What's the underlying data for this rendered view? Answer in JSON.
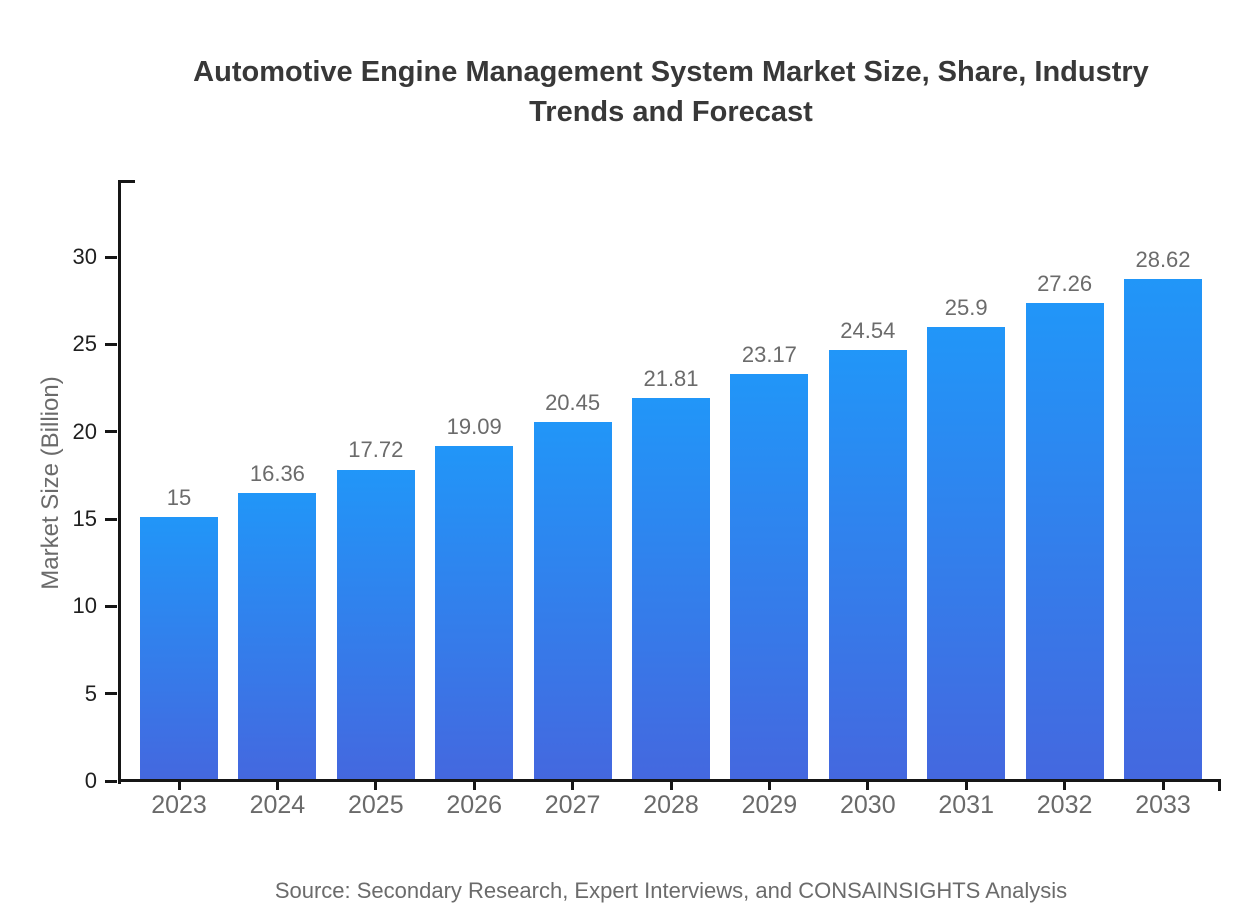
{
  "chart_data": {
    "type": "bar",
    "title": "Automotive Engine Management System Market Size, Share, Industry Trends and Forecast",
    "ylabel": "Market Size (Billion)",
    "xlabel": "",
    "categories": [
      "2023",
      "2024",
      "2025",
      "2026",
      "2027",
      "2028",
      "2029",
      "2030",
      "2031",
      "2032",
      "2033"
    ],
    "values": [
      15,
      16.36,
      17.72,
      19.09,
      20.45,
      21.81,
      23.17,
      24.54,
      25.9,
      27.26,
      28.62
    ],
    "data_labels": [
      "15",
      "16.36",
      "17.72",
      "19.09",
      "20.45",
      "21.81",
      "23.17",
      "24.54",
      "25.9",
      "27.26",
      "28.62"
    ],
    "yticks": [
      0,
      5,
      10,
      15,
      20,
      25,
      30
    ],
    "ylim": [
      0,
      34.4
    ],
    "grid": false,
    "legend": null,
    "bar_gradient_top": "#2196f8",
    "bar_gradient_bottom": "#4468df",
    "axis_color": "#161616",
    "label_color": "#6b6b6b",
    "source": "Source: Secondary Research, Expert Interviews, and CONSAINSIGHTS Analysis"
  }
}
